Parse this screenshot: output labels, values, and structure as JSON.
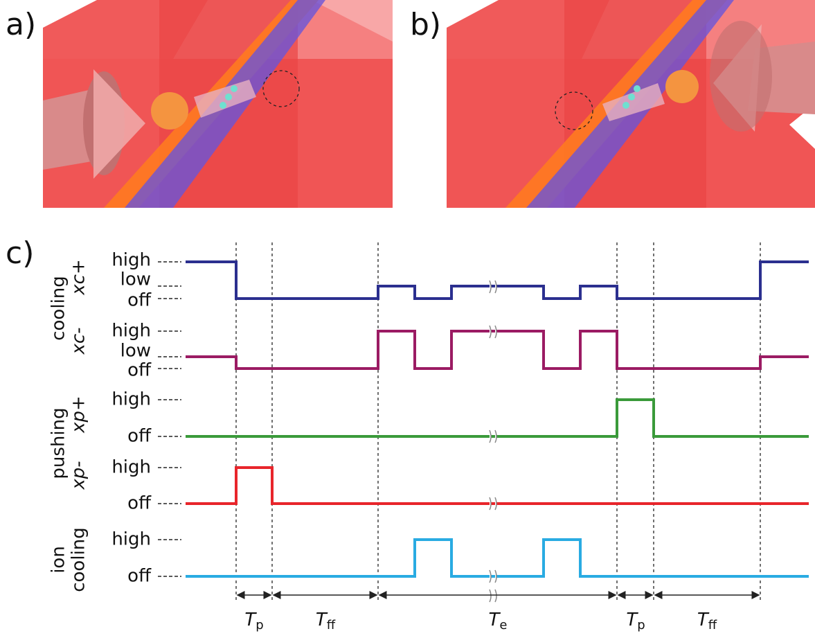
{
  "panels": {
    "a": "a)",
    "b": "b)",
    "c": "c)"
  },
  "timing": {
    "groups": [
      {
        "label": "cooling",
        "channels": [
          {
            "label": "xc+",
            "levels": [
              "high",
              "low",
              "off"
            ]
          },
          {
            "label": "xc-",
            "levels": [
              "high",
              "low",
              "off"
            ]
          }
        ]
      },
      {
        "label": "pushing",
        "channels": [
          {
            "label": "xp+",
            "levels": [
              "high",
              "off"
            ]
          },
          {
            "label": "xp-",
            "levels": [
              "high",
              "off"
            ]
          }
        ]
      },
      {
        "label_lines": [
          "ion",
          "cooling"
        ],
        "channels": [
          {
            "levels": [
              "high",
              "off"
            ]
          }
        ]
      }
    ],
    "durations": [
      {
        "symbol": "T",
        "subscript": "p"
      },
      {
        "symbol": "T",
        "subscript": "ff"
      },
      {
        "symbol": "T",
        "subscript": "e"
      },
      {
        "symbol": "T",
        "subscript": "p"
      },
      {
        "symbol": "T",
        "subscript": "ff"
      }
    ]
  }
}
